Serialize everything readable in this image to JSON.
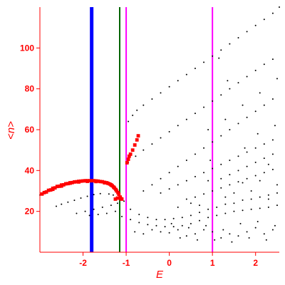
{
  "chart_data": {
    "type": "scatter",
    "xlabel": "E",
    "ylabel": "<n>",
    "xlim": [
      -3.0,
      2.55
    ],
    "ylim": [
      0,
      120
    ],
    "x_ticks": [
      -2,
      -1,
      0,
      1,
      2
    ],
    "y_ticks": [
      20,
      40,
      60,
      80,
      100
    ],
    "grid": false,
    "colors": {
      "axis": "#ff0000",
      "black_points": "#000000",
      "red_points": "#ff0000",
      "blue_line": "#0000ff",
      "green_line": "#006400",
      "magenta_line": "#ff00ff"
    },
    "vertical_lines": [
      {
        "x": -1.8,
        "color": "#0000ff",
        "width": "thick"
      },
      {
        "x": -1.15,
        "color": "#006400",
        "width": "thin"
      },
      {
        "x": -1.0,
        "color": "#ff00ff",
        "width": "thin"
      },
      {
        "x": 1.0,
        "color": "#ff00ff",
        "width": "thin"
      }
    ],
    "series": [
      {
        "color": "#000000",
        "style": "small dots",
        "points": [
          [
            -3.0,
            28
          ],
          [
            -2.9,
            29
          ],
          [
            -2.8,
            30
          ],
          [
            -2.7,
            31
          ],
          [
            -2.6,
            32
          ],
          [
            -2.5,
            32.5
          ],
          [
            -2.4,
            33
          ],
          [
            -2.3,
            33.5
          ],
          [
            -2.2,
            34
          ],
          [
            -1.3,
            28
          ],
          [
            -1.4,
            28.5
          ],
          [
            -1.6,
            28.7
          ],
          [
            -1.75,
            28.2
          ],
          [
            -1.9,
            27.4
          ],
          [
            -2.05,
            26.5
          ],
          [
            -2.2,
            25.4
          ],
          [
            -2.35,
            24.5
          ],
          [
            -2.5,
            23.5
          ],
          [
            -2.62,
            22.5
          ],
          [
            -1.2,
            24
          ],
          [
            -1.35,
            23
          ],
          [
            -1.55,
            22
          ],
          [
            -1.75,
            21
          ],
          [
            -1.95,
            20
          ],
          [
            -2.15,
            19
          ],
          [
            -1.25,
            20
          ],
          [
            -1.45,
            19
          ],
          [
            -1.65,
            18.5
          ],
          [
            -1.85,
            18
          ],
          [
            -1.1,
            17.5
          ],
          [
            -0.9,
            16
          ],
          [
            -0.7,
            14.5
          ],
          [
            -0.5,
            13.5
          ],
          [
            -0.3,
            13
          ],
          [
            -0.1,
            12.5
          ],
          [
            0.1,
            12.5
          ],
          [
            0.3,
            13
          ],
          [
            0.5,
            14
          ],
          [
            0.7,
            15.5
          ],
          [
            0.9,
            17
          ],
          [
            1.1,
            18
          ],
          [
            1.3,
            19
          ],
          [
            1.5,
            20
          ],
          [
            1.7,
            20.5
          ],
          [
            1.9,
            21
          ],
          [
            2.1,
            21.5
          ],
          [
            2.3,
            22
          ],
          [
            2.5,
            23
          ],
          [
            -1.05,
            25
          ],
          [
            -0.9,
            21
          ],
          [
            -0.7,
            18.5
          ],
          [
            -0.5,
            17
          ],
          [
            -0.3,
            16
          ],
          [
            -0.1,
            16
          ],
          [
            0.1,
            16.5
          ],
          [
            0.3,
            17
          ],
          [
            0.5,
            18
          ],
          [
            0.7,
            19.5
          ],
          [
            0.9,
            21
          ],
          [
            1.1,
            22
          ],
          [
            1.3,
            23.5
          ],
          [
            1.5,
            24
          ],
          [
            1.7,
            25.5
          ],
          [
            1.9,
            26
          ],
          [
            2.1,
            27
          ],
          [
            2.3,
            28
          ],
          [
            2.5,
            29
          ],
          [
            -0.8,
            10
          ],
          [
            -0.6,
            9
          ],
          [
            -0.4,
            11
          ],
          [
            -0.2,
            10
          ],
          [
            0.0,
            9.5
          ],
          [
            0.2,
            11
          ],
          [
            0.4,
            8
          ],
          [
            0.6,
            9
          ],
          [
            0.8,
            11
          ],
          [
            1.0,
            10
          ],
          [
            1.2,
            7
          ],
          [
            1.4,
            9
          ],
          [
            1.6,
            8
          ],
          [
            1.8,
            10
          ],
          [
            2.0,
            12
          ],
          [
            2.2,
            9
          ],
          [
            2.4,
            11
          ],
          [
            0.05,
            14
          ],
          [
            0.25,
            7
          ],
          [
            0.45,
            12
          ],
          [
            0.65,
            6
          ],
          [
            0.85,
            13
          ],
          [
            1.05,
            6
          ],
          [
            1.25,
            11
          ],
          [
            1.45,
            5
          ],
          [
            1.65,
            14
          ],
          [
            1.85,
            7
          ],
          [
            2.05,
            15
          ],
          [
            2.25,
            6
          ],
          [
            2.45,
            13
          ],
          [
            -0.95,
            44
          ],
          [
            -0.78,
            47
          ],
          [
            -0.6,
            50
          ],
          [
            -0.4,
            53
          ],
          [
            -0.2,
            56
          ],
          [
            0.0,
            59
          ],
          [
            0.2,
            62
          ],
          [
            0.4,
            65
          ],
          [
            0.6,
            68
          ],
          [
            0.8,
            71
          ],
          [
            1.0,
            74
          ],
          [
            1.2,
            77
          ],
          [
            1.4,
            80
          ],
          [
            1.6,
            83
          ],
          [
            1.8,
            86
          ],
          [
            2.0,
            89
          ],
          [
            2.2,
            92
          ],
          [
            2.4,
            94.5
          ],
          [
            -0.95,
            64
          ],
          [
            -0.85,
            67
          ],
          [
            -0.75,
            69.5
          ],
          [
            -0.6,
            72
          ],
          [
            -0.4,
            75
          ],
          [
            -0.2,
            78
          ],
          [
            0.0,
            81
          ],
          [
            0.2,
            84
          ],
          [
            0.4,
            87
          ],
          [
            0.6,
            90
          ],
          [
            0.8,
            93
          ],
          [
            1.0,
            96
          ],
          [
            1.2,
            99
          ],
          [
            1.4,
            102
          ],
          [
            1.6,
            105
          ],
          [
            1.8,
            108
          ],
          [
            2.0,
            111
          ],
          [
            2.2,
            114
          ],
          [
            2.4,
            117
          ],
          [
            2.55,
            120
          ],
          [
            -0.6,
            30
          ],
          [
            -0.4,
            33
          ],
          [
            -0.2,
            36
          ],
          [
            0.0,
            39
          ],
          [
            0.2,
            42
          ],
          [
            0.4,
            45
          ],
          [
            0.6,
            48
          ],
          [
            0.8,
            51
          ],
          [
            1.0,
            54
          ],
          [
            1.2,
            57
          ],
          [
            1.4,
            60
          ],
          [
            1.6,
            63
          ],
          [
            1.8,
            66
          ],
          [
            2.0,
            69
          ],
          [
            2.2,
            72
          ],
          [
            2.4,
            75
          ],
          [
            -0.2,
            29
          ],
          [
            0.0,
            31
          ],
          [
            0.2,
            33
          ],
          [
            0.4,
            35
          ],
          [
            0.6,
            37
          ],
          [
            0.8,
            39
          ],
          [
            1.0,
            41
          ],
          [
            1.2,
            43
          ],
          [
            1.4,
            45
          ],
          [
            1.6,
            47
          ],
          [
            1.8,
            49
          ],
          [
            2.0,
            51
          ],
          [
            2.2,
            53
          ],
          [
            2.4,
            55
          ],
          [
            0.4,
            26
          ],
          [
            0.6,
            27
          ],
          [
            0.8,
            28.5
          ],
          [
            1.0,
            30
          ],
          [
            1.2,
            31.5
          ],
          [
            1.4,
            33
          ],
          [
            1.6,
            34.5
          ],
          [
            1.8,
            36
          ],
          [
            2.0,
            37.5
          ],
          [
            2.2,
            39
          ],
          [
            2.4,
            40.5
          ],
          [
            1.2,
            36
          ],
          [
            1.4,
            38
          ],
          [
            1.6,
            40
          ],
          [
            1.8,
            42
          ],
          [
            2.0,
            44
          ],
          [
            2.2,
            46
          ],
          [
            2.4,
            48
          ],
          [
            0.9,
            60
          ],
          [
            1.3,
            65
          ],
          [
            1.7,
            72
          ],
          [
            2.1,
            78
          ],
          [
            2.5,
            85
          ],
          [
            2.3,
            43
          ],
          [
            2.1,
            35
          ],
          [
            1.9,
            30
          ],
          [
            2.5,
            33
          ],
          [
            0.5,
            24
          ],
          [
            1.3,
            27
          ],
          [
            1.7,
            34
          ],
          [
            2.3,
            26
          ],
          [
            1.5,
            29
          ],
          [
            0.9,
            35
          ],
          [
            0.2,
            22
          ],
          [
            0.7,
            23
          ],
          [
            2.45,
            62
          ],
          [
            1.35,
            84
          ],
          [
            1.15,
            95
          ],
          [
            0.95,
            45
          ],
          [
            1.75,
            51
          ],
          [
            2.05,
            58
          ]
        ]
      },
      {
        "color": "#ff0000",
        "style": "thick dots",
        "points": [
          [
            -2.95,
            28.5
          ],
          [
            -2.85,
            29.5
          ],
          [
            -2.75,
            30.5
          ],
          [
            -2.65,
            31.5
          ],
          [
            -2.55,
            32.3
          ],
          [
            -2.45,
            33.0
          ],
          [
            -2.35,
            33.6
          ],
          [
            -2.25,
            34.1
          ],
          [
            -2.15,
            34.5
          ],
          [
            -2.05,
            34.8
          ],
          [
            -1.95,
            35.0
          ],
          [
            -1.85,
            35.0
          ],
          [
            -1.75,
            35.0
          ],
          [
            -1.65,
            34.8
          ],
          [
            -1.55,
            34.5
          ],
          [
            -1.45,
            34.0
          ],
          [
            -1.38,
            33.4
          ],
          [
            -1.32,
            32.5
          ],
          [
            -1.27,
            31.4
          ],
          [
            -1.22,
            30.0
          ],
          [
            -1.17,
            28.4
          ],
          [
            -1.14,
            27.0
          ],
          [
            -1.12,
            26.2
          ],
          [
            -2.9,
            29.2
          ],
          [
            -2.8,
            30.3
          ],
          [
            -2.7,
            31.3
          ],
          [
            -2.6,
            32.2
          ],
          [
            -2.5,
            32.9
          ],
          [
            -2.4,
            33.5
          ],
          [
            -2.3,
            34.0
          ],
          [
            -2.2,
            34.4
          ],
          [
            -2.1,
            34.7
          ],
          [
            -2.0,
            34.9
          ],
          [
            -1.9,
            35.0
          ],
          [
            -1.8,
            35.0
          ],
          [
            -1.7,
            34.9
          ],
          [
            -1.6,
            34.6
          ],
          [
            -1.5,
            34.2
          ],
          [
            -1.42,
            33.7
          ],
          [
            -1.35,
            32.9
          ],
          [
            -1.29,
            31.9
          ],
          [
            -1.24,
            30.7
          ],
          [
            -1.19,
            29.2
          ],
          [
            -2.7,
            30.8
          ],
          [
            -2.5,
            32.4
          ],
          [
            -2.3,
            33.8
          ],
          [
            -2.1,
            34.4
          ],
          [
            -1.9,
            34.7
          ],
          [
            -1.7,
            34.6
          ],
          [
            -1.5,
            34.0
          ],
          [
            -1.35,
            33.0
          ],
          [
            -1.1,
            26.0
          ],
          [
            -1.2,
            26.5
          ],
          [
            -1.25,
            26.0
          ],
          [
            -0.98,
            43.8
          ],
          [
            -0.95,
            45.5
          ],
          [
            -0.93,
            47
          ],
          [
            -0.9,
            48
          ],
          [
            -0.85,
            50
          ],
          [
            -0.8,
            52.5
          ],
          [
            -0.75,
            55
          ],
          [
            -0.72,
            57
          ]
        ]
      }
    ]
  }
}
